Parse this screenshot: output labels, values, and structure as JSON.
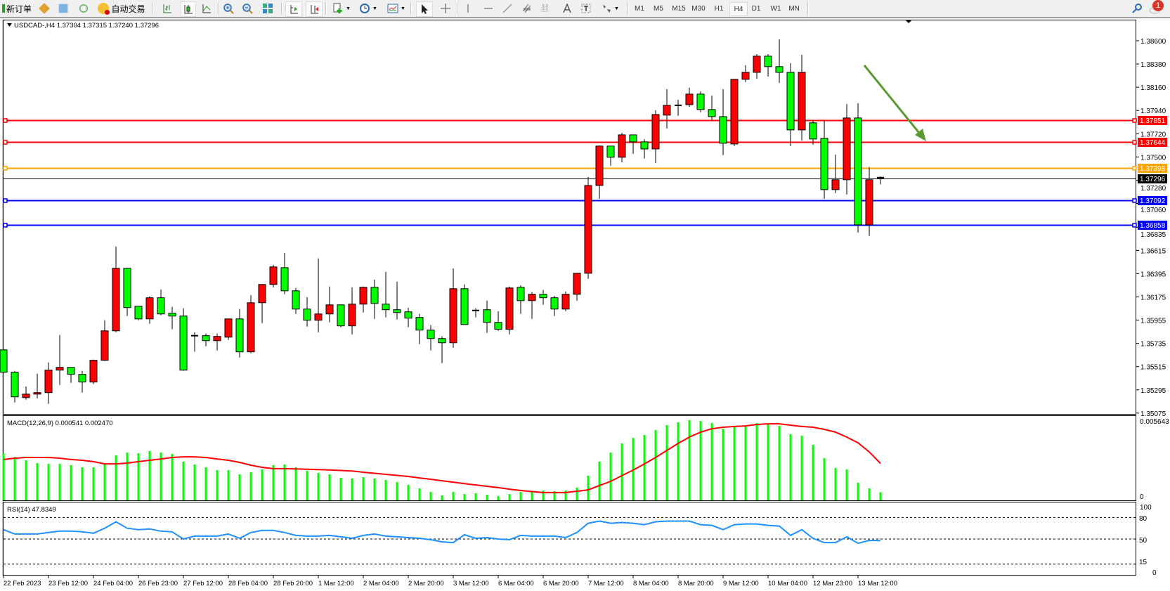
{
  "toolbar": {
    "new_order_label": "新订单",
    "auto_trading_label": "自动交易",
    "timeframes": [
      "M1",
      "M5",
      "M15",
      "M30",
      "H1",
      "H4",
      "D1",
      "W1",
      "MN"
    ],
    "selected_timeframe": "H4",
    "notification_count": "1",
    "tools": [
      "bar-chart-icon",
      "candlestick-icon",
      "line-chart-icon",
      "zoom-in-icon",
      "zoom-out-icon",
      "tile-windows-icon",
      "chart-shift-icon",
      "autoscroll-icon",
      "new-chart-icon",
      "periods-clock-icon",
      "templates-icon",
      "cursor-icon",
      "crosshair-icon",
      "vertical-line-icon",
      "horizontal-line-icon",
      "trendline-icon",
      "equidistant-channel-icon",
      "fibonacci-icon",
      "text-icon",
      "text-label-icon",
      "shapes-icon",
      "search-icon",
      "notification-icon"
    ]
  },
  "chart_data": {
    "type": "candlestick",
    "symbol_header": "USDCAD-,H4  1.37304 1.37315 1.37240 1.37296",
    "colors": {
      "up": "#ff0000",
      "down": "#00ff00",
      "wick": "#000000"
    },
    "ylim": [
      1.35075,
      1.387
    ],
    "price_ticks": [
      "1.38600",
      "1.38380",
      "1.38160",
      "1.37940",
      "1.37720",
      "1.37500",
      "1.37280",
      "1.37060",
      "1.36835",
      "1.36615",
      "1.36395",
      "1.36175",
      "1.35955",
      "1.35735",
      "1.35515",
      "1.35295",
      "1.35075"
    ],
    "time_labels": [
      "22 Feb 2023",
      "23 Feb 12:00",
      "24 Feb 04:00",
      "26 Feb 23:00",
      "27 Feb 12:00",
      "28 Feb 04:00",
      "28 Feb 20:00",
      "1 Mar 12:00",
      "2 Mar 04:00",
      "2 Mar 20:00",
      "3 Mar 12:00",
      "6 Mar 04:00",
      "6 Mar 20:00",
      "7 Mar 12:00",
      "8 Mar 04:00",
      "8 Mar 20:00",
      "9 Mar 12:00",
      "10 Mar 04:00",
      "12 Mar 23:00",
      "13 Mar 12:00"
    ],
    "time_label_every": 4,
    "ohlc": [
      [
        1.35674,
        1.35681,
        1.35455,
        1.35462
      ],
      [
        1.35462,
        1.35475,
        1.35176,
        1.35229
      ],
      [
        1.35222,
        1.35329,
        1.35202,
        1.35255
      ],
      [
        1.35255,
        1.35448,
        1.35215,
        1.35269
      ],
      [
        1.35269,
        1.35555,
        1.35162,
        1.35482
      ],
      [
        1.35482,
        1.35814,
        1.35342,
        1.35508
      ],
      [
        1.35508,
        1.35508,
        1.35362,
        1.35442
      ],
      [
        1.35442,
        1.35475,
        1.35269,
        1.35369
      ],
      [
        1.35369,
        1.35581,
        1.35349,
        1.35575
      ],
      [
        1.35575,
        1.35954,
        1.35568,
        1.35854
      ],
      [
        1.35854,
        1.36652,
        1.35841,
        1.36446
      ],
      [
        1.36446,
        1.36452,
        1.35994,
        1.36074
      ],
      [
        1.36087,
        1.36087,
        1.35954,
        1.35967
      ],
      [
        1.35967,
        1.3618,
        1.35921,
        1.36167
      ],
      [
        1.36167,
        1.36246,
        1.36001,
        1.36014
      ],
      [
        1.36021,
        1.3608,
        1.35868,
        1.35994
      ],
      [
        1.35994,
        1.36067,
        1.35475,
        1.35482
      ],
      [
        1.35808,
        1.35841,
        1.35655,
        1.35808
      ],
      [
        1.35808,
        1.35828,
        1.35708,
        1.35761
      ],
      [
        1.35761,
        1.35828,
        1.35668,
        1.35801
      ],
      [
        1.35794,
        1.35967,
        1.35768,
        1.35967
      ],
      [
        1.35967,
        1.3606,
        1.35601,
        1.35655
      ],
      [
        1.35655,
        1.36193,
        1.35641,
        1.3612
      ],
      [
        1.3612,
        1.36293,
        1.35927,
        1.36293
      ],
      [
        1.36293,
        1.36479,
        1.36266,
        1.36459
      ],
      [
        1.36452,
        1.36592,
        1.362,
        1.36233
      ],
      [
        1.36233,
        1.3626,
        1.36014,
        1.3606
      ],
      [
        1.3606,
        1.36173,
        1.35894,
        1.35954
      ],
      [
        1.35954,
        1.36539,
        1.35841,
        1.36014
      ],
      [
        1.36014,
        1.36273,
        1.35934,
        1.361
      ],
      [
        1.361,
        1.361,
        1.35888,
        1.35901
      ],
      [
        1.35901,
        1.36266,
        1.35821,
        1.36107
      ],
      [
        1.36107,
        1.36273,
        1.36027,
        1.36266
      ],
      [
        1.36266,
        1.36339,
        1.35967,
        1.36113
      ],
      [
        1.36107,
        1.36412,
        1.35981,
        1.36054
      ],
      [
        1.36054,
        1.36319,
        1.35961,
        1.36027
      ],
      [
        1.36034,
        1.36074,
        1.35888,
        1.35974
      ],
      [
        1.35981,
        1.36014,
        1.35728,
        1.35861
      ],
      [
        1.35861,
        1.35907,
        1.35668,
        1.35781
      ],
      [
        1.35781,
        1.35801,
        1.35548,
        1.35741
      ],
      [
        1.35741,
        1.36446,
        1.35694,
        1.36253
      ],
      [
        1.36253,
        1.36293,
        1.35914,
        1.35914
      ],
      [
        1.36047,
        1.36067,
        1.35981,
        1.36047
      ],
      [
        1.36054,
        1.3614,
        1.35834,
        1.35934
      ],
      [
        1.35934,
        1.3604,
        1.35854,
        1.35868
      ],
      [
        1.35868,
        1.36273,
        1.35821,
        1.3626
      ],
      [
        1.36266,
        1.36286,
        1.36014,
        1.3614
      ],
      [
        1.3614,
        1.3622,
        1.35967,
        1.362
      ],
      [
        1.362,
        1.3624,
        1.361,
        1.36167
      ],
      [
        1.36167,
        1.36186,
        1.35994,
        1.3606
      ],
      [
        1.3606,
        1.36226,
        1.3604,
        1.362
      ],
      [
        1.362,
        1.36399,
        1.3614,
        1.36399
      ],
      [
        1.36399,
        1.3731,
        1.36346,
        1.3723
      ],
      [
        1.3723,
        1.37609,
        1.37104,
        1.37603
      ],
      [
        1.37603,
        1.37603,
        1.37417,
        1.37497
      ],
      [
        1.37497,
        1.37729,
        1.3745,
        1.37709
      ],
      [
        1.37709,
        1.37709,
        1.3753,
        1.37643
      ],
      [
        1.37643,
        1.3767,
        1.37484,
        1.37576
      ],
      [
        1.37576,
        1.37942,
        1.37443,
        1.37902
      ],
      [
        1.37896,
        1.38142,
        1.37769,
        1.37989
      ],
      [
        1.37989,
        1.38042,
        1.37889,
        1.37989
      ],
      [
        1.37995,
        1.38155,
        1.37975,
        1.38095
      ],
      [
        1.38095,
        1.38122,
        1.37922,
        1.37949
      ],
      [
        1.37949,
        1.38082,
        1.37842,
        1.37882
      ],
      [
        1.37882,
        1.38142,
        1.37517,
        1.3763
      ],
      [
        1.37623,
        1.38235,
        1.37603,
        1.38235
      ],
      [
        1.38235,
        1.38368,
        1.38208,
        1.38301
      ],
      [
        1.38301,
        1.38474,
        1.38241,
        1.38454
      ],
      [
        1.38454,
        1.38474,
        1.38261,
        1.38355
      ],
      [
        1.38355,
        1.38614,
        1.38201,
        1.38301
      ],
      [
        1.38301,
        1.38388,
        1.37603,
        1.37756
      ],
      [
        1.37756,
        1.38468,
        1.37656,
        1.38301
      ],
      [
        1.37823,
        1.37849,
        1.37616,
        1.3767
      ],
      [
        1.37676,
        1.37849,
        1.37104,
        1.37191
      ],
      [
        1.37191,
        1.37523,
        1.37157,
        1.37284
      ],
      [
        1.37284,
        1.38002,
        1.37144,
        1.37869
      ],
      [
        1.37869,
        1.38009,
        1.36785,
        1.36858
      ],
      [
        1.36858,
        1.37404,
        1.36752,
        1.37284
      ],
      [
        1.37304,
        1.37315,
        1.3724,
        1.37296
      ]
    ],
    "current_price": {
      "value": 1.37296,
      "label": "1.37296",
      "color": "#000000"
    },
    "horizontal_lines": [
      {
        "value": 1.37851,
        "label": "1.37851",
        "color": "#ff0000"
      },
      {
        "value": 1.37644,
        "label": "1.37644",
        "color": "#ff0000"
      },
      {
        "value": 1.37398,
        "label": "1.37398",
        "color": "#ffa500"
      },
      {
        "value": 1.37092,
        "label": "1.37092",
        "color": "#0000ff"
      },
      {
        "value": 1.36858,
        "label": "1.36858",
        "color": "#0000ff"
      }
    ],
    "annotation_arrow": {
      "color": "#5a9a32",
      "direction": "down-right"
    },
    "macd": {
      "header": "MACD(12,26,9) 0.000541 0.002470",
      "max_label": "0.005643",
      "zero_label": "0",
      "max": 0.005643,
      "histogram_color": "#00ff00",
      "signal_color": "#ff0000",
      "histogram": [
        0.00315,
        0.00291,
        0.00268,
        0.00249,
        0.00244,
        0.00244,
        0.00235,
        0.00221,
        0.00221,
        0.0024,
        0.00301,
        0.0032,
        0.00315,
        0.00329,
        0.0032,
        0.0031,
        0.00259,
        0.0024,
        0.00221,
        0.00202,
        0.00202,
        0.00174,
        0.00188,
        0.00207,
        0.00235,
        0.0024,
        0.00221,
        0.00197,
        0.00183,
        0.00174,
        0.0015,
        0.00146,
        0.00155,
        0.00146,
        0.00136,
        0.00122,
        0.00103,
        0.0008,
        0.00056,
        0.00033,
        0.00056,
        0.00042,
        0.00047,
        0.00038,
        0.00028,
        0.00042,
        0.00056,
        0.00061,
        0.00066,
        0.00061,
        0.00066,
        0.00085,
        0.00165,
        0.00259,
        0.0032,
        0.00381,
        0.00418,
        0.00437,
        0.0047,
        0.00503,
        0.00522,
        0.00536,
        0.00531,
        0.00517,
        0.00479,
        0.00489,
        0.00498,
        0.00517,
        0.00508,
        0.00498,
        0.00442,
        0.00432,
        0.00371,
        0.00282,
        0.00216,
        0.00207,
        0.00118,
        0.0008,
        0.000541
      ],
      "signal": [
        0.00273,
        0.00282,
        0.00287,
        0.00287,
        0.00287,
        0.00282,
        0.00273,
        0.00268,
        0.00259,
        0.00244,
        0.00244,
        0.00249,
        0.00259,
        0.00268,
        0.00277,
        0.00287,
        0.00291,
        0.00291,
        0.00287,
        0.00277,
        0.00268,
        0.00254,
        0.00235,
        0.00221,
        0.00212,
        0.00212,
        0.0021,
        0.00208,
        0.00206,
        0.00203,
        0.002,
        0.00196,
        0.00188,
        0.00181,
        0.00174,
        0.00167,
        0.0016,
        0.0015,
        0.00141,
        0.00131,
        0.00122,
        0.00112,
        0.00103,
        0.00094,
        0.00085,
        0.00075,
        0.00066,
        0.00059,
        0.00052,
        0.00052,
        0.00052,
        0.00061,
        0.0007,
        0.00099,
        0.00127,
        0.00165,
        0.00202,
        0.00244,
        0.00287,
        0.00334,
        0.00381,
        0.00423,
        0.00456,
        0.00479,
        0.00489,
        0.00494,
        0.00498,
        0.00508,
        0.00512,
        0.00512,
        0.00503,
        0.00494,
        0.00489,
        0.00475,
        0.00456,
        0.00423,
        0.00385,
        0.00324,
        0.00247
      ]
    },
    "rsi": {
      "header": "RSI(14) 47.8349",
      "levels": [
        80,
        50,
        15
      ],
      "level_labels": [
        "100",
        "80",
        "50",
        "15",
        "0"
      ],
      "color": "#1e90ff",
      "values": [
        63,
        57,
        57,
        57,
        59,
        61,
        61,
        60,
        58,
        65,
        74,
        65,
        63,
        64,
        61,
        60,
        50,
        54,
        54,
        54,
        57,
        51,
        59,
        62,
        62,
        59,
        55,
        54,
        54,
        55,
        53,
        51,
        55,
        57,
        54,
        53,
        52,
        51,
        49,
        46,
        45,
        56,
        51,
        52,
        50,
        49,
        55,
        54,
        54,
        54,
        52,
        59,
        72,
        75,
        72,
        73,
        72,
        70,
        74,
        75,
        75,
        75,
        70,
        69,
        63,
        70,
        71,
        71,
        69,
        68,
        55,
        63,
        51,
        45,
        45,
        53,
        44,
        48,
        47.83
      ]
    }
  }
}
